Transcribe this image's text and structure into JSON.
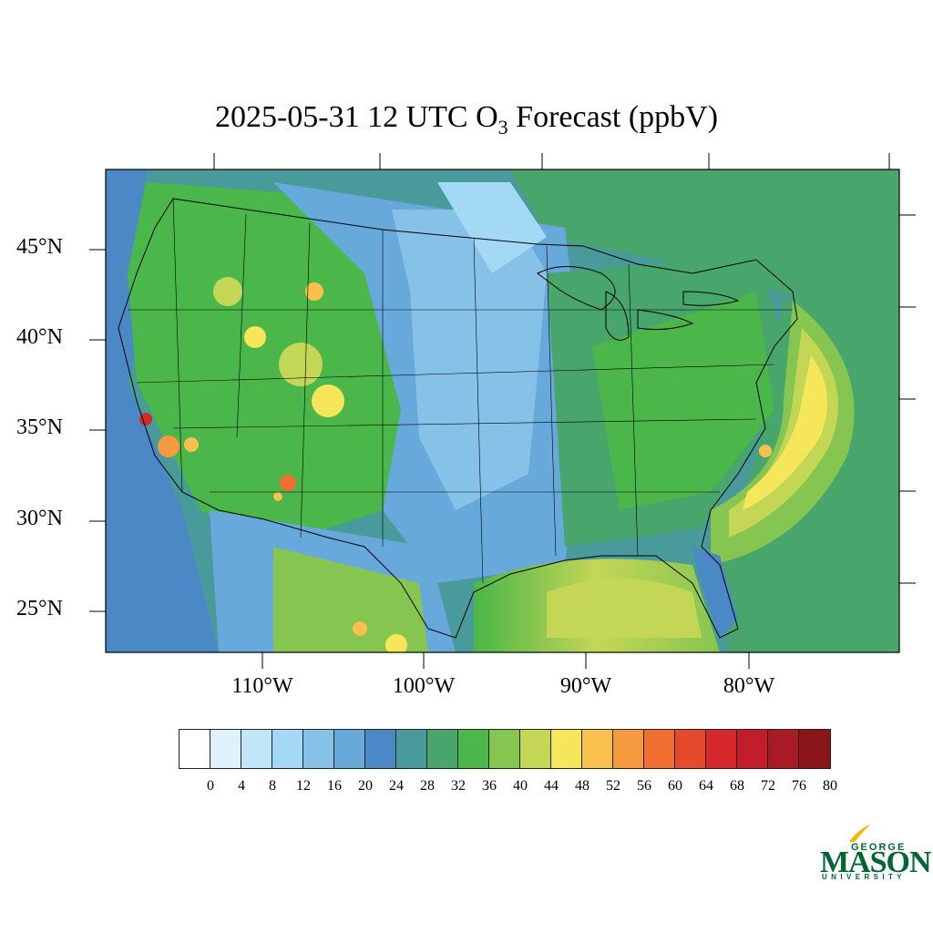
{
  "title": {
    "prefix": "2025-05-31 12 UTC O",
    "subscript": "3",
    "suffix": " Forecast (ppbV)"
  },
  "map": {
    "projection": "Lambert conformal",
    "lat_labels": [
      "45°N",
      "40°N",
      "35°N",
      "30°N",
      "25°N"
    ],
    "lon_labels": [
      "110°W",
      "100°W",
      "90°W",
      "80°W"
    ]
  },
  "colorbar": {
    "colors": [
      "#ffffff",
      "#dff1fb",
      "#c0e6f7",
      "#a3d9f4",
      "#86c2e8",
      "#68a9db",
      "#4a89c6",
      "#489a9b",
      "#48a66d",
      "#4bb649",
      "#86c550",
      "#c4d656",
      "#f6e65a",
      "#f9c04c",
      "#f59a3f",
      "#f06f30",
      "#e54a2c",
      "#d7292c",
      "#c31d2a",
      "#a81a24",
      "#8b1519"
    ],
    "labels": [
      "0",
      "4",
      "8",
      "12",
      "16",
      "20",
      "24",
      "28",
      "32",
      "36",
      "40",
      "44",
      "48",
      "52",
      "56",
      "60",
      "64",
      "68",
      "72",
      "76",
      "80"
    ]
  },
  "logo": {
    "line1": "GEORGE",
    "line2": "MASON",
    "line3": "UNIVERSITY",
    "color": "#006633",
    "accent": "#f5b700"
  }
}
